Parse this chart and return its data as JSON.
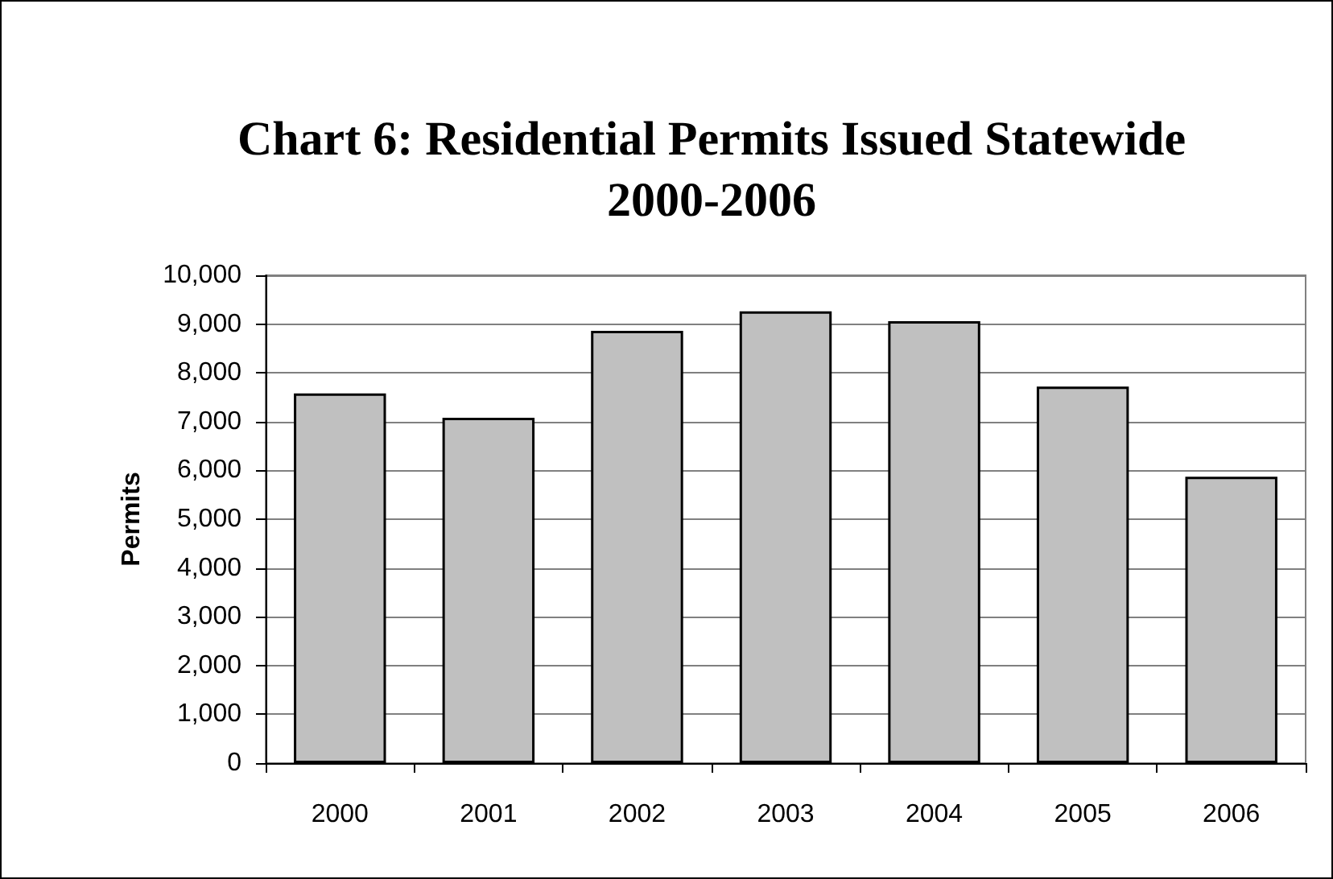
{
  "chart_data": {
    "type": "bar",
    "title": "Chart 6: Residential Permits Issued Statewide 2000-2006",
    "ylabel": "Permits",
    "categories": [
      "2000",
      "2001",
      "2002",
      "2003",
      "2004",
      "2005",
      "2006"
    ],
    "values": [
      7580,
      7080,
      8860,
      9260,
      9060,
      7720,
      5870
    ],
    "color": "#c0c0c0",
    "ylim": [
      0,
      10000
    ],
    "yticks": [
      0,
      {
        "value": 1000,
        "label": "1,000"
      },
      {
        "value": 2000,
        "label": "2,000"
      },
      {
        "value": 3000,
        "label": "3,000"
      },
      {
        "value": 4000,
        "label": "4,000"
      },
      {
        "value": 5000,
        "label": "5,000"
      },
      {
        "value": 6000,
        "label": "6,000"
      },
      {
        "value": 7000,
        "label": "7,000"
      },
      {
        "value": 8000,
        "label": "8,000"
      },
      {
        "value": 9000,
        "label": "9,000"
      },
      {
        "value": 10000,
        "label": "10,000"
      }
    ],
    "grid": "y"
  }
}
